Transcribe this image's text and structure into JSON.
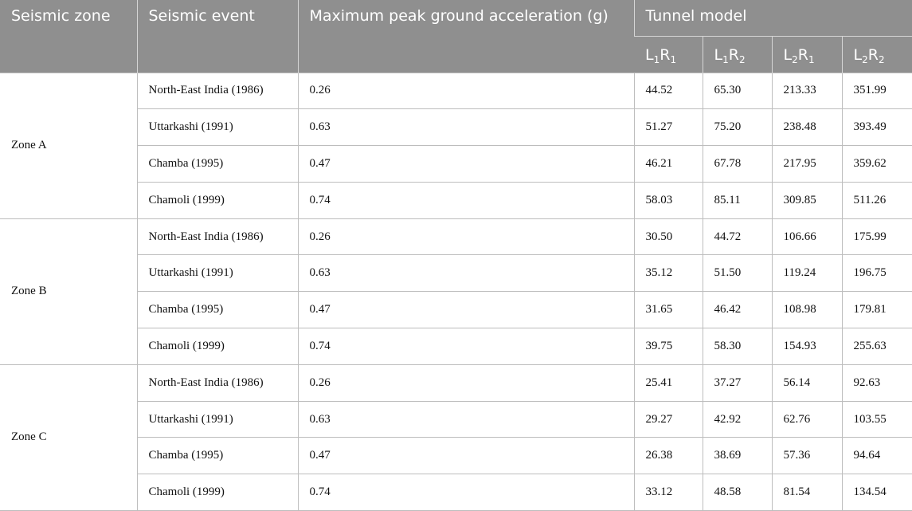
{
  "headers": {
    "seismic_zone": "Seismic zone",
    "seismic_event": "Seismic event",
    "max_pga": "Maximum peak ground acceleration (g)",
    "tunnel_model": "Tunnel model",
    "models": [
      {
        "a": "L",
        "a_sub": "1",
        "b": "R",
        "b_sub": "1"
      },
      {
        "a": "L",
        "a_sub": "1",
        "b": "R",
        "b_sub": "2"
      },
      {
        "a": "L",
        "a_sub": "2",
        "b": "R",
        "b_sub": "1"
      },
      {
        "a": "L",
        "a_sub": "2",
        "b": "R",
        "b_sub": "2"
      }
    ]
  },
  "zones": [
    {
      "name": "Zone A",
      "rows": [
        {
          "event": "North-East India (1986)",
          "pga": "0.26",
          "v": [
            "44.52",
            "65.30",
            "213.33",
            "351.99"
          ]
        },
        {
          "event": "Uttarkashi (1991)",
          "pga": "0.63",
          "v": [
            "51.27",
            "75.20",
            "238.48",
            "393.49"
          ]
        },
        {
          "event": "Chamba (1995)",
          "pga": "0.47",
          "v": [
            "46.21",
            "67.78",
            "217.95",
            "359.62"
          ]
        },
        {
          "event": "Chamoli (1999)",
          "pga": "0.74",
          "v": [
            "58.03",
            "85.11",
            "309.85",
            "511.26"
          ]
        }
      ]
    },
    {
      "name": "Zone B",
      "rows": [
        {
          "event": "North-East India (1986)",
          "pga": "0.26",
          "v": [
            "30.50",
            "44.72",
            "106.66",
            "175.99"
          ]
        },
        {
          "event": "Uttarkashi (1991)",
          "pga": "0.63",
          "v": [
            "35.12",
            "51.50",
            "119.24",
            "196.75"
          ]
        },
        {
          "event": "Chamba (1995)",
          "pga": "0.47",
          "v": [
            "31.65",
            "46.42",
            "108.98",
            "179.81"
          ]
        },
        {
          "event": "Chamoli (1999)",
          "pga": "0.74",
          "v": [
            "39.75",
            "58.30",
            "154.93",
            "255.63"
          ]
        }
      ]
    },
    {
      "name": "Zone C",
      "rows": [
        {
          "event": "North-East India (1986)",
          "pga": "0.26",
          "v": [
            "25.41",
            "37.27",
            "56.14",
            "92.63"
          ]
        },
        {
          "event": "Uttarkashi (1991)",
          "pga": "0.63",
          "v": [
            "29.27",
            "42.92",
            "62.76",
            "103.55"
          ]
        },
        {
          "event": "Chamba (1995)",
          "pga": "0.47",
          "v": [
            "26.38",
            "38.69",
            "57.36",
            "94.64"
          ]
        },
        {
          "event": "Chamoli (1999)",
          "pga": "0.74",
          "v": [
            "33.12",
            "48.58",
            "81.54",
            "134.54"
          ]
        }
      ]
    }
  ]
}
